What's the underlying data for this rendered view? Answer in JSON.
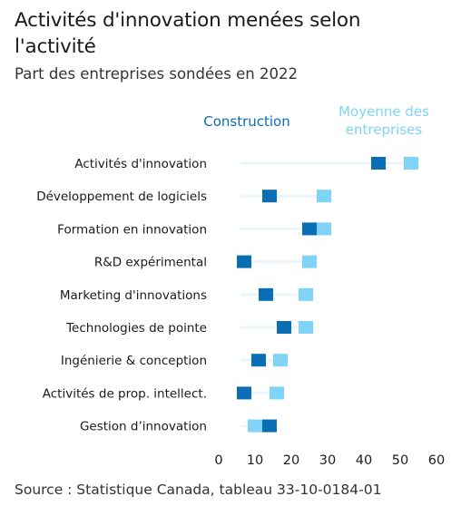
{
  "title": "Activités d'innovation menées selon l'activité",
  "subtitle": "Part des entreprises sondées en 2022",
  "source": "Source : Statistique Canada, tableau 33-10-0184-01",
  "colors": {
    "construction": "#0a6eb4",
    "average": "#7fd3f7",
    "connector": "#eaf5fc"
  },
  "chart_data": {
    "type": "dot-plot",
    "categories": [
      "Activités d'innovation",
      "Développement de logiciels",
      "Formation en innovation",
      "R&D expérimental",
      "Marketing d'innovations",
      "Technologies de pointe",
      "Ingénierie & conception",
      "Activités de prop. intellect.",
      "Gestion d’innovation"
    ],
    "series": [
      {
        "name": "Construction",
        "values": [
          44,
          14,
          25,
          7,
          13,
          18,
          11,
          7,
          14
        ]
      },
      {
        "name": "Moyenne des entreprises",
        "values": [
          53,
          29,
          29,
          25,
          24,
          24,
          17,
          16,
          10
        ]
      }
    ],
    "legend": [
      {
        "lines": [
          "Construction"
        ]
      },
      {
        "lines": [
          "Moyenne des",
          "entreprises"
        ]
      }
    ],
    "xlim": [
      0,
      60
    ],
    "xticks": [
      "0",
      "10",
      "20",
      "30",
      "40",
      "50",
      "60"
    ],
    "legend_position": "top-right",
    "grid": false
  }
}
